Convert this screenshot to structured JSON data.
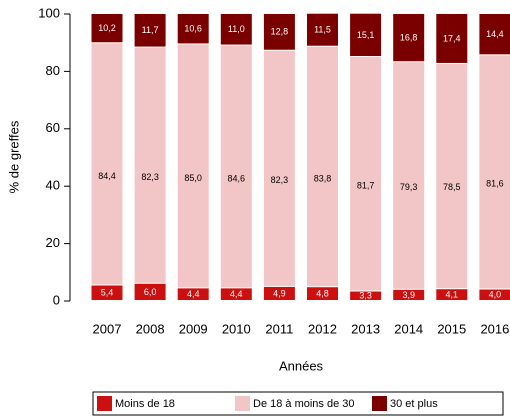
{
  "chart_data": {
    "type": "stacked_bar",
    "xlabel": "Années",
    "ylabel": "% de greffes",
    "categories": [
      "2007",
      "2008",
      "2009",
      "2010",
      "2011",
      "2012",
      "2013",
      "2014",
      "2015",
      "2016"
    ],
    "series": [
      {
        "name": "Moins de 18",
        "color": "#cc1010",
        "label_color": "#ffffff",
        "values": [
          5.4,
          6.0,
          4.4,
          4.4,
          4.9,
          4.8,
          3.3,
          3.9,
          4.1,
          4.0
        ],
        "value_labels": [
          "5,4",
          "6,0",
          "4,4",
          "4,4",
          "4,9",
          "4,8",
          "3,3",
          "3,9",
          "4,1",
          "4,0"
        ]
      },
      {
        "name": "De 18 à moins de 30",
        "color": "#f2c6c6",
        "label_color": "#000000",
        "values": [
          84.4,
          82.3,
          85.0,
          84.6,
          82.3,
          83.8,
          81.7,
          79.3,
          78.5,
          81.6
        ],
        "value_labels": [
          "84,4",
          "82,3",
          "85,0",
          "84,6",
          "82,3",
          "83,8",
          "81,7",
          "79,3",
          "78,5",
          "81,6"
        ]
      },
      {
        "name": "30 et plus",
        "color": "#7a0000",
        "label_color": "#ffffff",
        "values": [
          10.2,
          11.7,
          10.6,
          11.0,
          12.8,
          11.5,
          15.1,
          16.8,
          17.4,
          14.4
        ],
        "value_labels": [
          "10,2",
          "11,7",
          "10,6",
          "11,0",
          "12,8",
          "11,5",
          "15,1",
          "16,8",
          "17,4",
          "14,4"
        ]
      }
    ],
    "ylim": [
      0,
      100
    ],
    "yticks": [
      0,
      20,
      40,
      60,
      80,
      100
    ],
    "legend": "bottom"
  }
}
